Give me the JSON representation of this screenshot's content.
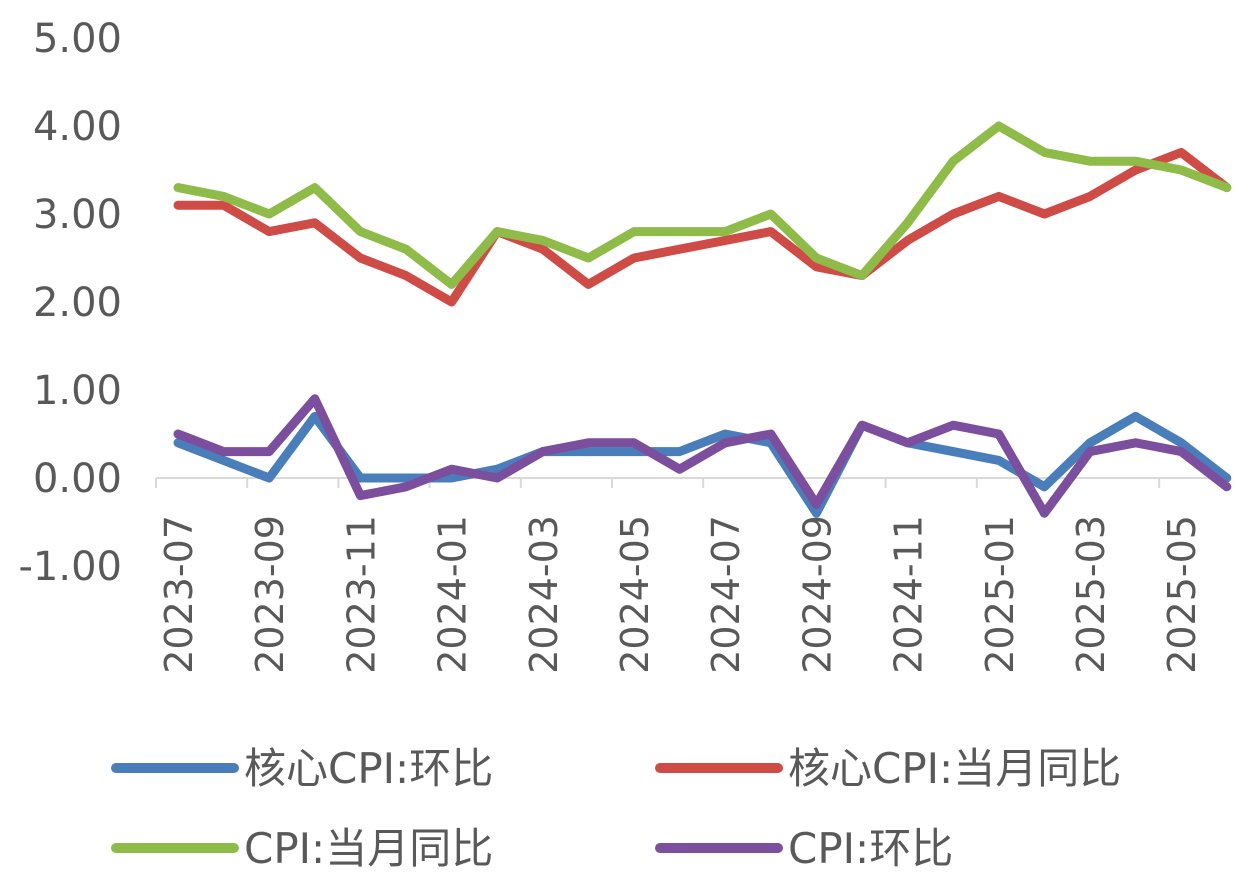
{
  "chart_data": {
    "type": "line",
    "title": "",
    "xlabel": "",
    "ylabel": "",
    "ylim": [
      -1,
      5
    ],
    "yticks": [
      5,
      4,
      3,
      2,
      1,
      0,
      -1
    ],
    "ytick_labels": [
      "5.00",
      "4.00",
      "3.00",
      "2.00",
      "1.00",
      "0.00",
      "-1.00"
    ],
    "x": [
      "2023-07",
      "2023-08",
      "2023-09",
      "2023-10",
      "2023-11",
      "2023-12",
      "2024-01",
      "2024-02",
      "2024-03",
      "2024-04",
      "2024-05",
      "2024-06",
      "2024-07",
      "2024-08",
      "2024-09",
      "2024-10",
      "2024-11",
      "2024-12",
      "2025-01",
      "2025-02",
      "2025-03",
      "2025-04",
      "2025-05",
      "2025-06"
    ],
    "xtick_labels": [
      "2023-07",
      "2023-09",
      "2023-11",
      "2024-01",
      "2024-03",
      "2024-05",
      "2024-07",
      "2024-09",
      "2024-11",
      "2025-01",
      "2025-03",
      "2025-05"
    ],
    "grid": false,
    "legend_position": "bottom",
    "series": [
      {
        "name": "核心CPI:环比",
        "color": "#4a7ebb",
        "values": [
          0.4,
          0.2,
          0.0,
          0.7,
          0.0,
          0.0,
          0.0,
          0.1,
          0.3,
          0.3,
          0.3,
          0.3,
          0.5,
          0.4,
          -0.4,
          0.6,
          0.4,
          0.3,
          0.2,
          -0.1,
          0.4,
          0.7,
          0.4,
          0.0
        ]
      },
      {
        "name": "核心CPI:当月同比",
        "color": "#cf4b45",
        "values": [
          3.1,
          3.1,
          2.8,
          2.9,
          2.5,
          2.3,
          2.0,
          2.8,
          2.6,
          2.2,
          2.5,
          2.6,
          2.7,
          2.8,
          2.4,
          2.3,
          2.7,
          3.0,
          3.2,
          3.0,
          3.2,
          3.5,
          3.7,
          3.3
        ]
      },
      {
        "name": "CPI:当月同比",
        "color": "#8fbb48",
        "values": [
          3.3,
          3.2,
          3.0,
          3.3,
          2.8,
          2.6,
          2.2,
          2.8,
          2.7,
          2.5,
          2.8,
          2.8,
          2.8,
          3.0,
          2.5,
          2.3,
          2.9,
          3.6,
          4.0,
          3.7,
          3.6,
          3.6,
          3.5,
          3.3
        ]
      },
      {
        "name": "CPI:环比",
        "color": "#7b4f9e",
        "values": [
          0.5,
          0.3,
          0.3,
          0.9,
          -0.2,
          -0.1,
          0.1,
          0.0,
          0.3,
          0.4,
          0.4,
          0.1,
          0.4,
          0.5,
          -0.3,
          0.6,
          0.4,
          0.6,
          0.5,
          -0.4,
          0.3,
          0.4,
          0.3,
          -0.1
        ]
      }
    ]
  }
}
